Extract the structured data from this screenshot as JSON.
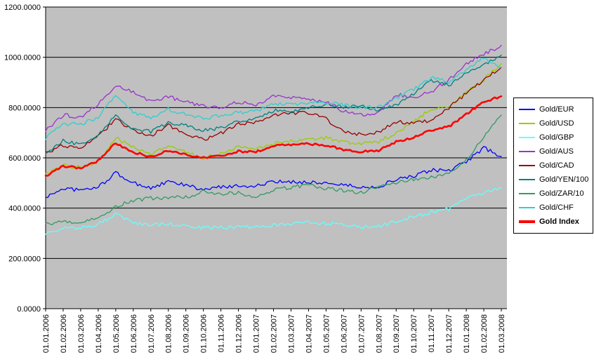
{
  "chart_data": {
    "type": "line",
    "title": "",
    "legend_position": "right",
    "plot_area_color": "#C0C0C0",
    "gridline_color": "#000000",
    "axis_color": "#000000",
    "y_axis": {
      "min": 0,
      "max": 1200,
      "step": 200,
      "tick_labels": [
        "1200.0000",
        "1000.0000",
        "800.0000",
        "600.0000",
        "400.0000",
        "200.0000",
        "0.0000"
      ]
    },
    "x_axis": {
      "tick_labels": [
        "01.01.2006",
        "01.02.2006",
        "01.03.2006",
        "01.04.2006",
        "01.05.2006",
        "01.06.2006",
        "01.07.2006",
        "01.08.2006",
        "01.09.2006",
        "01.10.2006",
        "01.11.2006",
        "01.12.2006",
        "01.01.2007",
        "01.02.2007",
        "01.03.2007",
        "01.04.2007",
        "01.05.2007",
        "01.06.2007",
        "01.07.2007",
        "01.08.2007",
        "01.09.2007",
        "01.10.2007",
        "01.11.2007",
        "01.12.2007",
        "01.01.2008",
        "01.02.2008",
        "01.03.2008"
      ]
    },
    "series": [
      {
        "name": "Gold/EUR",
        "color": "#0000FF",
        "line_width": 1.3,
        "values": [
          442,
          479,
          471,
          483,
          540,
          500,
          480,
          504,
          492,
          472,
          484,
          489,
          488,
          504,
          504,
          504,
          500,
          493,
          482,
          485,
          515,
          525,
          552,
          548,
          585,
          640,
          605
        ]
      },
      {
        "name": "Gold/USD",
        "color": "#99CC00",
        "line_width": 1.3,
        "values": [
          530,
          570,
          560,
          585,
          680,
          640,
          615,
          645,
          625,
          600,
          615,
          645,
          635,
          655,
          665,
          675,
          680,
          660,
          655,
          665,
          700,
          745,
          795,
          800,
          860,
          910,
          975
        ]
      },
      {
        "name": "Gold/GBP",
        "color": "#66FFFF",
        "line_width": 1.3,
        "values": [
          299,
          320,
          320,
          336,
          374,
          342,
          332,
          339,
          329,
          321,
          324,
          327,
          324,
          332,
          339,
          343,
          340,
          333,
          326,
          328,
          347,
          365,
          384,
          396,
          437,
          462,
          480
        ]
      },
      {
        "name": "Gold/AUS",
        "color": "#9933CC",
        "line_width": 1.3,
        "values": [
          711,
          770,
          762,
          813,
          889,
          859,
          826,
          843,
          822,
          805,
          799,
          822,
          809,
          845,
          842,
          833,
          824,
          786,
          771,
          778,
          854,
          837,
          864,
          909,
          977,
          1011,
          1048
        ]
      },
      {
        "name": "Gold/CAD",
        "color": "#990000",
        "line_width": 1.3,
        "values": [
          617,
          650,
          636,
          684,
          755,
          707,
          686,
          729,
          694,
          672,
          698,
          735,
          743,
          773,
          778,
          780,
          755,
          703,
          694,
          702,
          742,
          741,
          747,
          800,
          856,
          910,
          960
        ]
      },
      {
        "name": "Gold/YEN/100",
        "color": "#008080",
        "line_width": 1.3,
        "values": [
          610,
          670,
          650,
          687,
          772,
          714,
          704,
          738,
          731,
          708,
          720,
          745,
          756,
          789,
          785,
          800,
          813,
          802,
          806,
          788,
          809,
          857,
          910,
          888,
          942,
          969,
          1009
        ]
      },
      {
        "name": "Gold/ZAR/10",
        "color": "#339966",
        "line_width": 1.3,
        "values": [
          336,
          345,
          346,
          360,
          408,
          429,
          440,
          442,
          444,
          465,
          458,
          461,
          445,
          472,
          483,
          493,
          479,
          469,
          462,
          489,
          500,
          514,
          521,
          544,
          589,
          683,
          770
        ]
      },
      {
        "name": "Gold/CHF",
        "color": "#33CCCC",
        "line_width": 1.3,
        "values": [
          678,
          735,
          734,
          761,
          850,
          781,
          756,
          793,
          775,
          756,
          769,
          780,
          787,
          815,
          811,
          820,
          819,
          812,
          799,
          801,
          837,
          872,
          918,
          904,
          946,
          1000,
          960
        ]
      },
      {
        "name": "Gold Index",
        "color": "#FF0000",
        "line_width": 2.6,
        "bold_label": true,
        "values": [
          528,
          567,
          560,
          589,
          659,
          622,
          605,
          629,
          614,
          600,
          608,
          626,
          623,
          648,
          651,
          656,
          651,
          632,
          624,
          630,
          663,
          682,
          711,
          724,
          774,
          822,
          845
        ]
      }
    ]
  }
}
